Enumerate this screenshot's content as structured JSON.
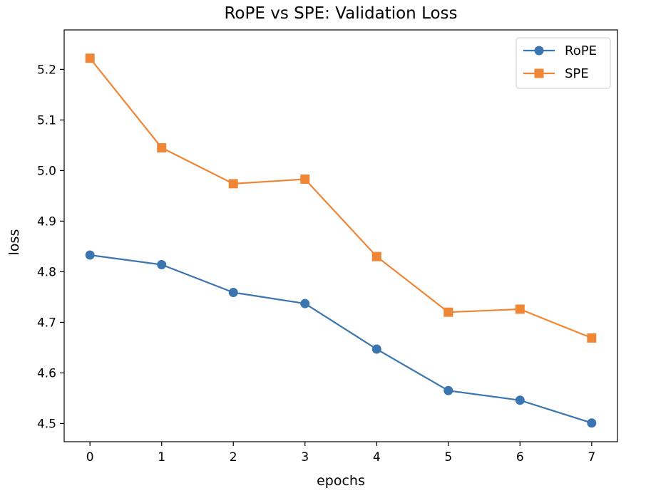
{
  "chart_data": {
    "type": "line",
    "title": "RoPE vs SPE: Validation Loss",
    "xlabel": "epochs",
    "ylabel": "loss",
    "x": [
      0,
      1,
      2,
      3,
      4,
      5,
      6,
      7
    ],
    "xticks": [
      "0",
      "1",
      "2",
      "3",
      "4",
      "5",
      "6",
      "7"
    ],
    "yticks": [
      "4.5",
      "4.6",
      "4.7",
      "4.8",
      "4.9",
      "5.0",
      "5.1",
      "5.2"
    ],
    "xlim": [
      -0.36,
      7.36
    ],
    "ylim": [
      4.464,
      5.278
    ],
    "grid": false,
    "legend_position": "top-right",
    "series": [
      {
        "name": "RoPE",
        "color": "#3b75af",
        "marker": "circle",
        "values": [
          4.833,
          4.814,
          4.759,
          4.737,
          4.647,
          4.565,
          4.546,
          4.501
        ]
      },
      {
        "name": "SPE",
        "color": "#ef8636",
        "marker": "square",
        "values": [
          5.222,
          5.045,
          4.974,
          4.983,
          4.83,
          4.72,
          4.726,
          4.669
        ]
      }
    ]
  }
}
